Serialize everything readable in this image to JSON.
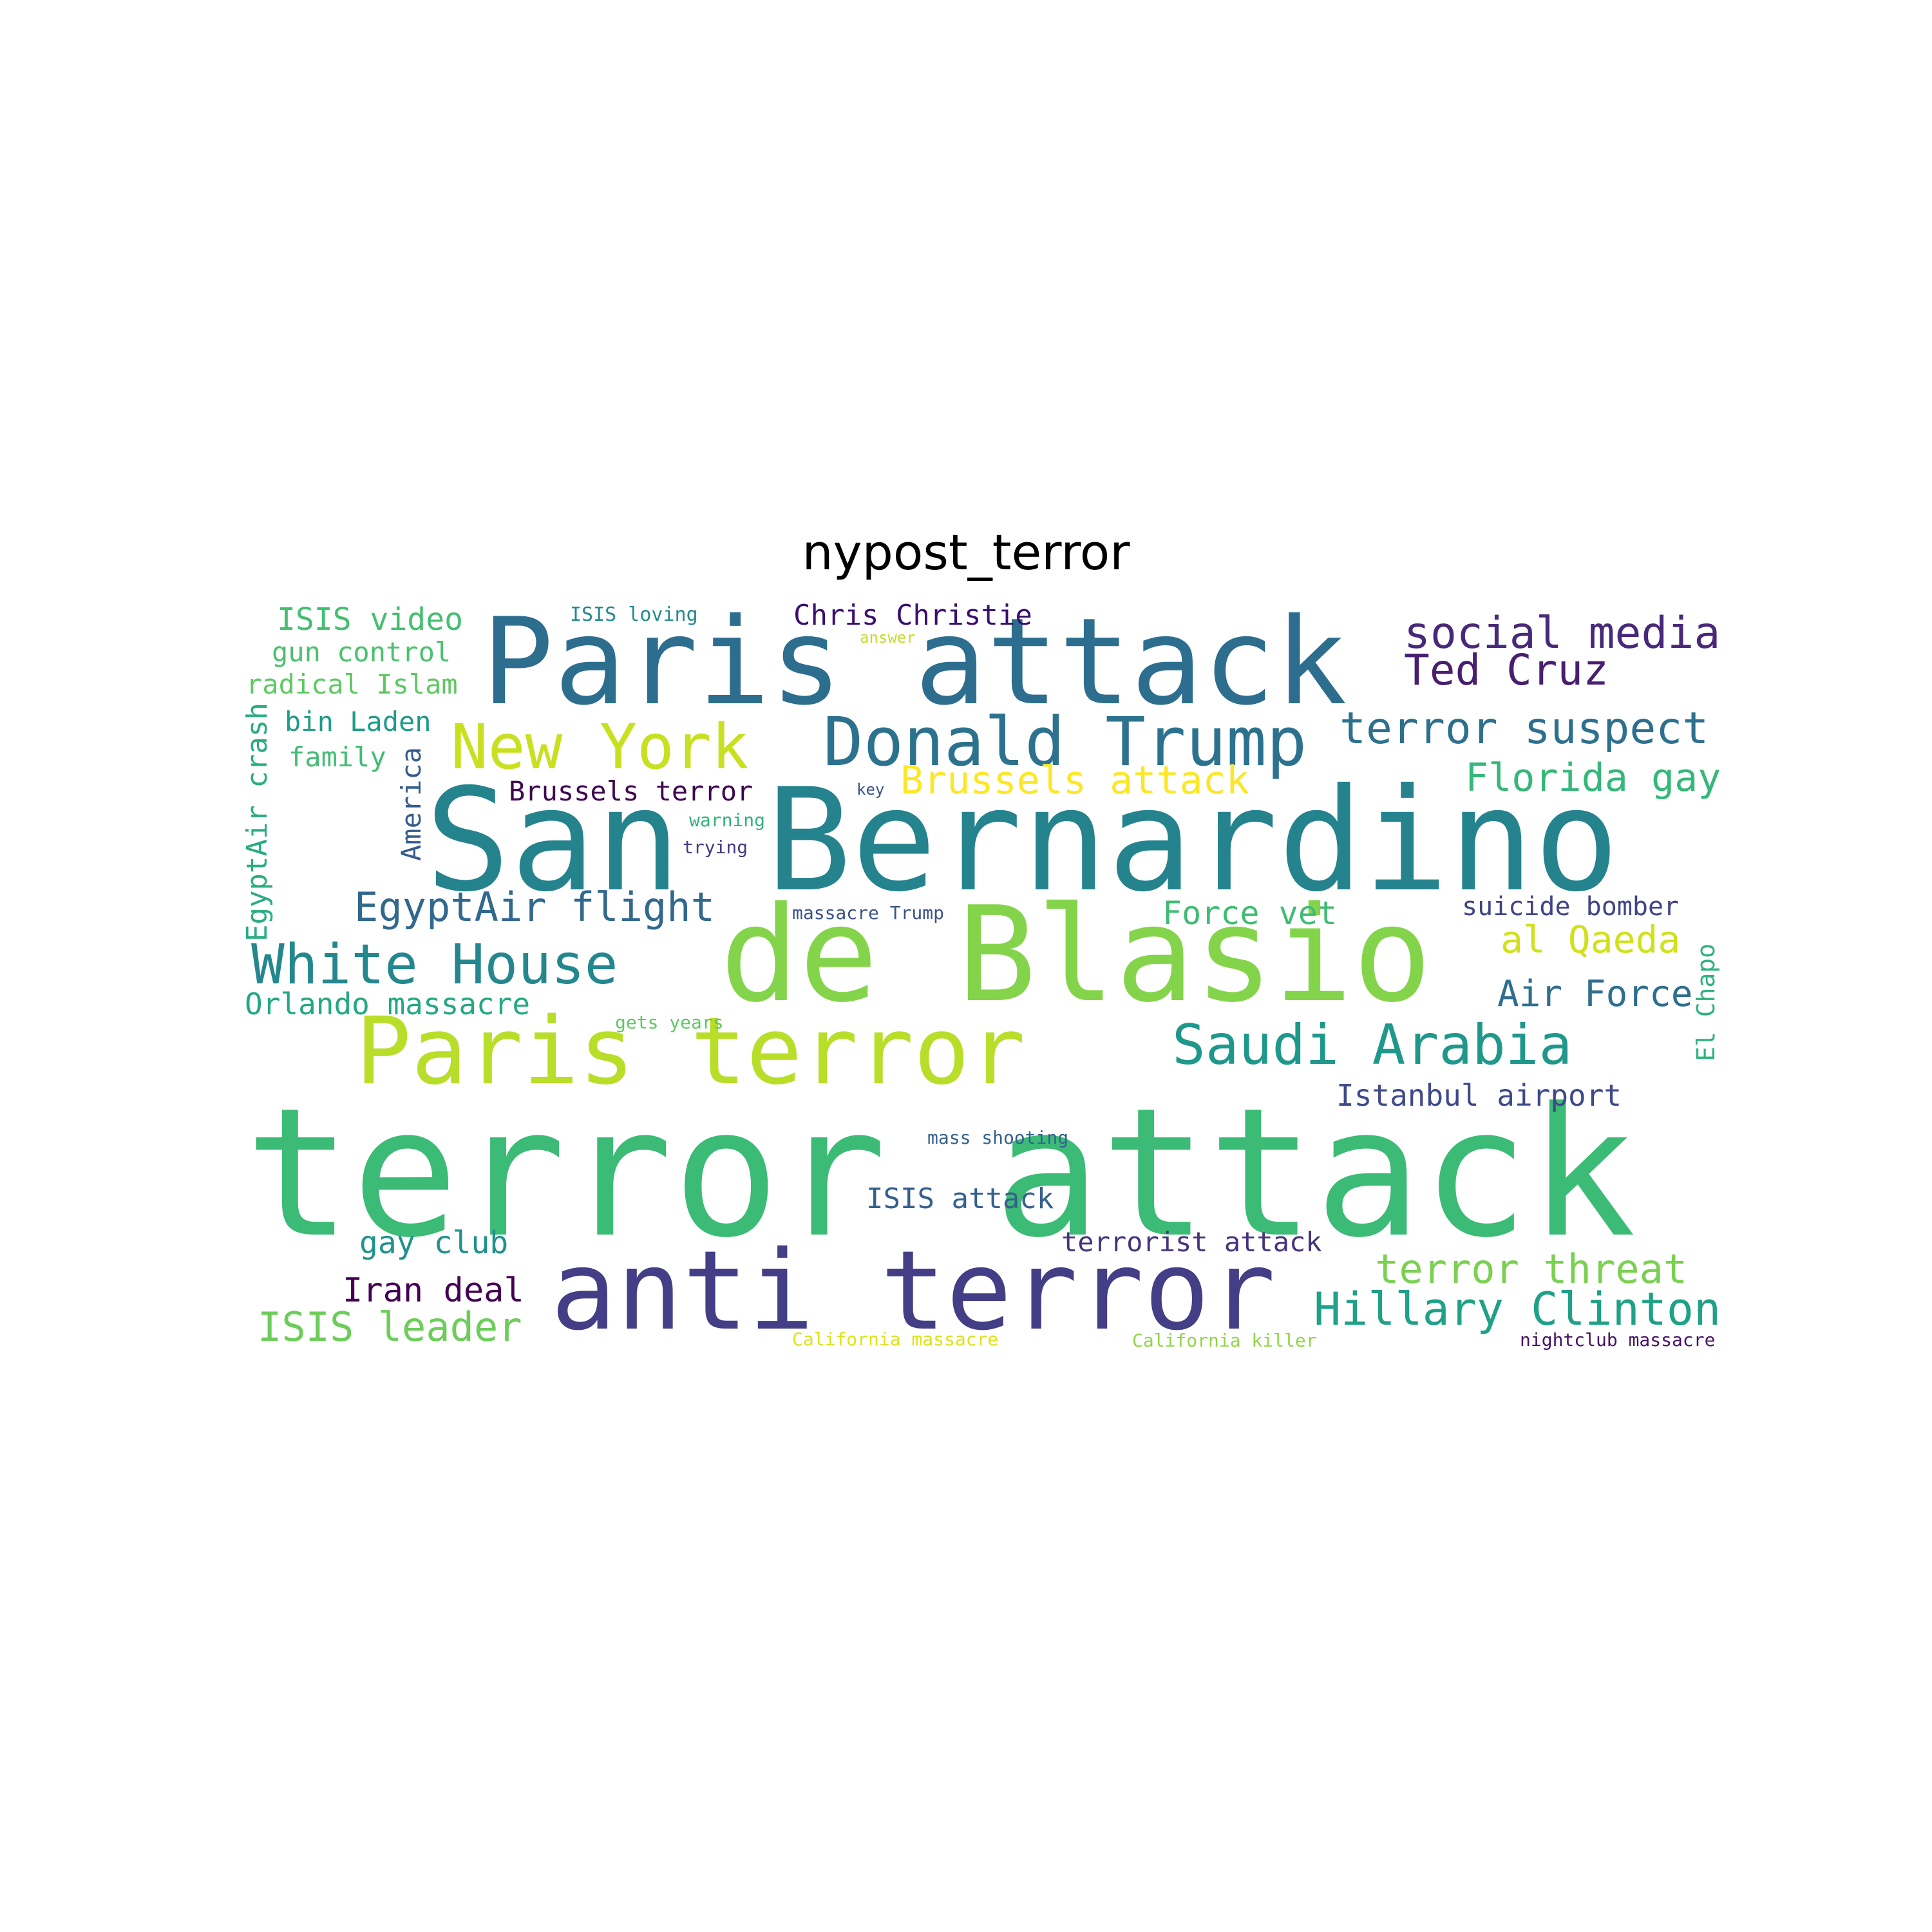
{
  "title": "nypost_terror",
  "words": [
    {
      "text": "terror attack",
      "color": "#3bbb75"
    },
    {
      "text": "San Bernardino",
      "color": "#25838e"
    },
    {
      "text": "de Blasio",
      "color": "#84d44b"
    },
    {
      "text": "Paris attack",
      "color": "#2d6e8e"
    },
    {
      "text": "anti terror",
      "color": "#433e85"
    },
    {
      "text": "Paris terror",
      "color": "#b8de29"
    },
    {
      "text": "Donald Trump",
      "color": "#2c728e"
    },
    {
      "text": "New York",
      "color": "#c8e020"
    },
    {
      "text": "Saudi Arabia",
      "color": "#1f988b"
    },
    {
      "text": "White House",
      "color": "#24878e"
    },
    {
      "text": "social media",
      "color": "#482878"
    },
    {
      "text": "terror suspect",
      "color": "#2d708e"
    },
    {
      "text": "Ted Cruz",
      "color": "#481f70"
    },
    {
      "text": "Hillary Clinton",
      "color": "#1fa187"
    },
    {
      "text": "Brussels attack",
      "color": "#fde725"
    },
    {
      "text": "Florida gay",
      "color": "#35b779"
    },
    {
      "text": "EgyptAir flight",
      "color": "#31688e"
    },
    {
      "text": "terror threat",
      "color": "#7ad151"
    },
    {
      "text": "ISIS leader",
      "color": "#6ccd5a"
    },
    {
      "text": "al Qaeda",
      "color": "#d0e11c"
    },
    {
      "text": "Air Force",
      "color": "#2e6e8e"
    },
    {
      "text": "Force vet",
      "color": "#3fbc73"
    },
    {
      "text": "ISIS video",
      "color": "#44bf70"
    },
    {
      "text": "Istanbul airport",
      "color": "#3e4a89"
    },
    {
      "text": "Iran deal",
      "color": "#440154"
    },
    {
      "text": "gay club",
      "color": "#20928c"
    },
    {
      "text": "Orlando massacre",
      "color": "#22a884"
    },
    {
      "text": "ISIS attack",
      "color": "#355f8d"
    },
    {
      "text": "Chris Christie",
      "color": "#3b0f70"
    },
    {
      "text": "terrorist attack",
      "color": "#46337e"
    },
    {
      "text": "gun control",
      "color": "#4ac16d"
    },
    {
      "text": "radical Islam",
      "color": "#5ec962"
    },
    {
      "text": "Brussels terror",
      "color": "#3e0751"
    },
    {
      "text": "bin Laden",
      "color": "#1e9c89"
    },
    {
      "text": "family",
      "color": "#40bd72"
    },
    {
      "text": "suicide bomber",
      "color": "#414487"
    },
    {
      "text": "EgyptAir crash",
      "color": "#27ad81"
    },
    {
      "text": "America",
      "color": "#365c8d"
    },
    {
      "text": "El Chapo",
      "color": "#2db27d"
    },
    {
      "text": "ISIS loving",
      "color": "#238a8d"
    },
    {
      "text": "massacre Trump",
      "color": "#3b528b"
    },
    {
      "text": "mass shooting",
      "color": "#34618d"
    },
    {
      "text": "nightclub massacre",
      "color": "#471365"
    },
    {
      "text": "California killer",
      "color": "#8fd744"
    },
    {
      "text": "California massacre",
      "color": "#dde318"
    },
    {
      "text": "gets years",
      "color": "#5ec962"
    },
    {
      "text": "warning",
      "color": "#2fb47c"
    },
    {
      "text": "trying",
      "color": "#443a83"
    },
    {
      "text": "key",
      "color": "#3b528b"
    },
    {
      "text": "answer",
      "color": "#c0df25"
    }
  ]
}
